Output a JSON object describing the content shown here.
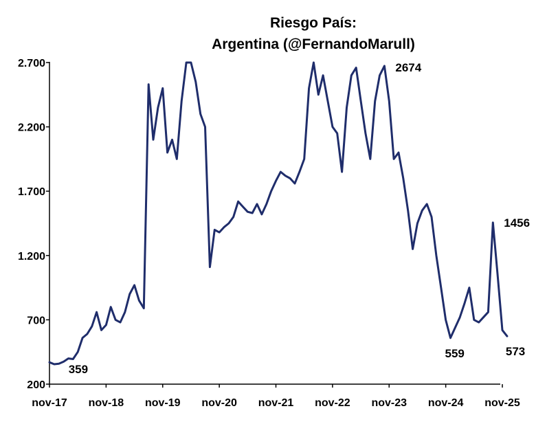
{
  "chart_data": {
    "type": "line",
    "title": "Riesgo País:",
    "subtitle": "Argentina (@FernandoMarull)",
    "xlabel": "",
    "ylabel": "",
    "ylim": [
      200,
      2700
    ],
    "y_ticks": [
      200,
      700,
      1200,
      1700,
      2200,
      2700
    ],
    "y_tick_labels": [
      "200",
      "700",
      "1.200",
      "1.700",
      "2.200",
      "2.700"
    ],
    "x_ticks": [
      "2017-11",
      "2018-11",
      "2019-11",
      "2020-11",
      "2021-11",
      "2022-11",
      "2023-11",
      "2024-11",
      "2025-11"
    ],
    "x_tick_labels": [
      "nov-17",
      "nov-18",
      "nov-19",
      "nov-20",
      "nov-21",
      "nov-22",
      "nov-23",
      "nov-24",
      "nov-25"
    ],
    "grid": false,
    "legend": "none",
    "line_color": "#1f2d6b",
    "series": [
      {
        "points": [
          [
            "2017-11",
            370
          ],
          [
            "2017-12",
            355
          ],
          [
            "2018-01",
            359
          ],
          [
            "2018-02",
            375
          ],
          [
            "2018-03",
            400
          ],
          [
            "2018-04",
            395
          ],
          [
            "2018-05",
            450
          ],
          [
            "2018-06",
            560
          ],
          [
            "2018-07",
            590
          ],
          [
            "2018-08",
            650
          ],
          [
            "2018-09",
            760
          ],
          [
            "2018-10",
            620
          ],
          [
            "2018-11",
            660
          ],
          [
            "2018-12",
            800
          ],
          [
            "2019-01",
            700
          ],
          [
            "2019-02",
            680
          ],
          [
            "2019-03",
            760
          ],
          [
            "2019-04",
            900
          ],
          [
            "2019-05",
            970
          ],
          [
            "2019-06",
            850
          ],
          [
            "2019-07",
            790
          ],
          [
            "2019-08",
            2530
          ],
          [
            "2019-09",
            2100
          ],
          [
            "2019-10",
            2350
          ],
          [
            "2019-11",
            2500
          ],
          [
            "2019-12",
            2000
          ],
          [
            "2020-01",
            2100
          ],
          [
            "2020-02",
            1950
          ],
          [
            "2020-03",
            2400
          ],
          [
            "2020-04",
            2700
          ],
          [
            "2020-05",
            2700
          ],
          [
            "2020-06",
            2550
          ],
          [
            "2020-07",
            2300
          ],
          [
            "2020-08",
            2200
          ],
          [
            "2020-09",
            1110
          ],
          [
            "2020-10",
            1400
          ],
          [
            "2020-11",
            1380
          ],
          [
            "2020-12",
            1420
          ],
          [
            "2021-01",
            1450
          ],
          [
            "2021-02",
            1500
          ],
          [
            "2021-03",
            1620
          ],
          [
            "2021-04",
            1580
          ],
          [
            "2021-05",
            1540
          ],
          [
            "2021-06",
            1530
          ],
          [
            "2021-07",
            1600
          ],
          [
            "2021-08",
            1520
          ],
          [
            "2021-09",
            1600
          ],
          [
            "2021-10",
            1700
          ],
          [
            "2021-11",
            1780
          ],
          [
            "2021-12",
            1850
          ],
          [
            "2022-01",
            1820
          ],
          [
            "2022-02",
            1800
          ],
          [
            "2022-03",
            1760
          ],
          [
            "2022-04",
            1850
          ],
          [
            "2022-05",
            1950
          ],
          [
            "2022-06",
            2500
          ],
          [
            "2022-07",
            2700
          ],
          [
            "2022-08",
            2450
          ],
          [
            "2022-09",
            2600
          ],
          [
            "2022-10",
            2400
          ],
          [
            "2022-11",
            2200
          ],
          [
            "2022-12",
            2150
          ],
          [
            "2023-01",
            1850
          ],
          [
            "2023-02",
            2350
          ],
          [
            "2023-03",
            2600
          ],
          [
            "2023-04",
            2660
          ],
          [
            "2023-05",
            2400
          ],
          [
            "2023-06",
            2150
          ],
          [
            "2023-07",
            1950
          ],
          [
            "2023-08",
            2400
          ],
          [
            "2023-09",
            2600
          ],
          [
            "2023-10",
            2674
          ],
          [
            "2023-11",
            2400
          ],
          [
            "2023-12",
            1950
          ],
          [
            "2024-01",
            2000
          ],
          [
            "2024-02",
            1800
          ],
          [
            "2024-03",
            1550
          ],
          [
            "2024-04",
            1250
          ],
          [
            "2024-05",
            1450
          ],
          [
            "2024-06",
            1550
          ],
          [
            "2024-07",
            1600
          ],
          [
            "2024-08",
            1500
          ],
          [
            "2024-09",
            1200
          ],
          [
            "2024-10",
            950
          ],
          [
            "2024-11",
            700
          ],
          [
            "2024-12",
            559
          ],
          [
            "2025-01",
            640
          ],
          [
            "2025-02",
            720
          ],
          [
            "2025-03",
            830
          ],
          [
            "2025-04",
            950
          ],
          [
            "2025-05",
            700
          ],
          [
            "2025-06",
            680
          ],
          [
            "2025-07",
            720
          ],
          [
            "2025-08",
            760
          ],
          [
            "2025-09",
            1456
          ],
          [
            "2025-10",
            1050
          ],
          [
            "2025-11",
            620
          ],
          [
            "2025-12",
            573
          ]
        ]
      }
    ],
    "annotations": [
      {
        "text": "359",
        "x": "2018-01",
        "y": 359
      },
      {
        "text": "2674",
        "x": "2023-10",
        "y": 2674
      },
      {
        "text": "1456",
        "x": "2025-09",
        "y": 1456
      },
      {
        "text": "559",
        "x": "2024-12",
        "y": 559
      },
      {
        "text": "573",
        "x": "2025-12",
        "y": 573
      }
    ]
  }
}
